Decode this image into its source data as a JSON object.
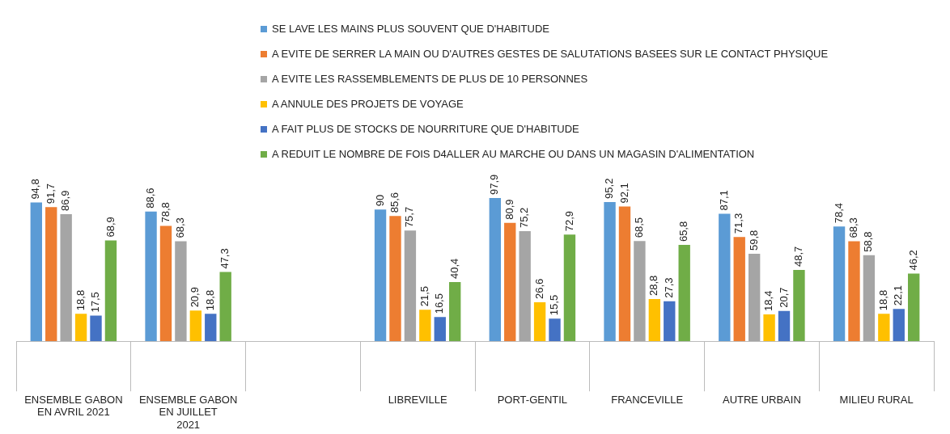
{
  "chart_data": {
    "type": "bar",
    "categories": [
      "ENSEMBLE GABON EN AVRIL 2021",
      "ENSEMBLE GABON EN JUILLET 2021",
      null,
      "LIBREVILLE",
      "PORT-GENTIL",
      "FRANCEVILLE",
      "AUTRE URBAIN",
      "MILIEU RURAL"
    ],
    "series": [
      {
        "name": "SE LAVE LES MAINS PLUS SOUVENT QUE D'HABITUDE",
        "color": "#5b9bd5",
        "values": [
          94.8,
          88.6,
          null,
          90,
          97.9,
          95.2,
          87.1,
          78.4
        ],
        "value_labels": [
          "94,8",
          "88,6",
          null,
          "90",
          "97,9",
          "95,2",
          "87,1",
          "78,4"
        ]
      },
      {
        "name": "A EVITE DE SERRER LA MAIN OU D'AUTRES GESTES DE SALUTATIONS BASEES SUR LE CONTACT PHYSIQUE",
        "color": "#ed7d31",
        "values": [
          91.7,
          78.8,
          null,
          85.6,
          80.9,
          92.1,
          71.3,
          68.3
        ],
        "value_labels": [
          "91,7",
          "78,8",
          null,
          "85,6",
          "80,9",
          "92,1",
          "71,3",
          "68,3"
        ]
      },
      {
        "name": "A EVITE LES RASSEMBLEMENTS DE PLUS DE 10 PERSONNES",
        "color": "#a5a5a5",
        "values": [
          86.9,
          68.3,
          null,
          75.7,
          75.2,
          68.5,
          59.8,
          58.8
        ],
        "value_labels": [
          "86,9",
          "68,3",
          null,
          "75,7",
          "75,2",
          "68,5",
          "59,8",
          "58,8"
        ]
      },
      {
        "name": "A ANNULE DES PROJETS DE VOYAGE",
        "color": "#ffc000",
        "values": [
          18.8,
          20.9,
          null,
          21.5,
          26.6,
          28.8,
          18.4,
          18.8
        ],
        "value_labels": [
          "18,8",
          "20,9",
          null,
          "21,5",
          "26,6",
          "28,8",
          "18,4",
          "18,8"
        ]
      },
      {
        "name": "A FAIT PLUS DE STOCKS DE NOURRITURE QUE D'HABITUDE",
        "color": "#4472c4",
        "values": [
          17.5,
          18.8,
          null,
          16.5,
          15.5,
          27.3,
          20.7,
          22.1
        ],
        "value_labels": [
          "17,5",
          "18,8",
          null,
          "16,5",
          "15,5",
          "27,3",
          "20,7",
          "22,1"
        ]
      },
      {
        "name": "A REDUIT LE NOMBRE DE FOIS D4ALLER AU MARCHE OU DANS UN MAGASIN D'ALIMENTATION",
        "color": "#70ad47",
        "values": [
          68.9,
          47.3,
          null,
          40.4,
          72.9,
          65.8,
          48.7,
          46.2
        ],
        "value_labels": [
          "68,9",
          "47,3",
          null,
          "40,4",
          "72,9",
          "65,8",
          "48,7",
          "46,2"
        ]
      }
    ],
    "legend": "top",
    "grid": false
  }
}
